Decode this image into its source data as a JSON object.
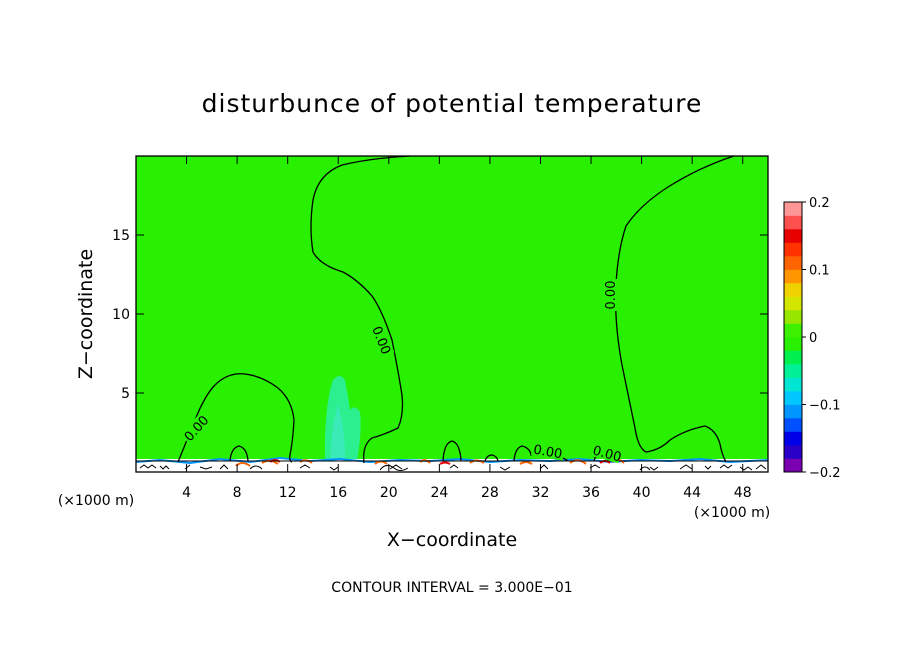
{
  "chart_data": {
    "type": "contour",
    "title": "disturbunce of potential temperature",
    "xlabel": "X−coordinate",
    "ylabel": "Z−coordinate",
    "x_unit": "(×1000 m)",
    "y_unit": "(×1000 m)",
    "xlim": [
      0,
      50
    ],
    "ylim": [
      0,
      20
    ],
    "x_ticks": [
      4,
      8,
      12,
      16,
      20,
      24,
      28,
      32,
      36,
      40,
      44,
      48
    ],
    "y_ticks": [
      5,
      10,
      15
    ],
    "contour_interval_text": "CONTOUR INTERVAL = 3.000E−01",
    "contour_labels": [
      "0.00",
      "0.00",
      "0.00",
      "0.00",
      "0.00"
    ],
    "colorbar": {
      "range": [
        -0.2,
        0.2
      ],
      "tick_labels": [
        "0.2",
        "0.1",
        "0",
        "−0.1",
        "−0.2"
      ],
      "tick_values": [
        0.2,
        0.1,
        0.0,
        -0.1,
        -0.2
      ],
      "colors": [
        "#7a00b0",
        "#2800c8",
        "#0000e8",
        "#0050ff",
        "#0096ff",
        "#00c8ff",
        "#00e6d2",
        "#00f096",
        "#00f050",
        "#28f000",
        "#3cf000",
        "#96e600",
        "#d2e600",
        "#f0d200",
        "#ff9600",
        "#ff6400",
        "#ff3200",
        "#e60000",
        "#ff5050",
        "#ff9696"
      ]
    },
    "field_color": "#28f000",
    "contour_color": "#000000"
  }
}
